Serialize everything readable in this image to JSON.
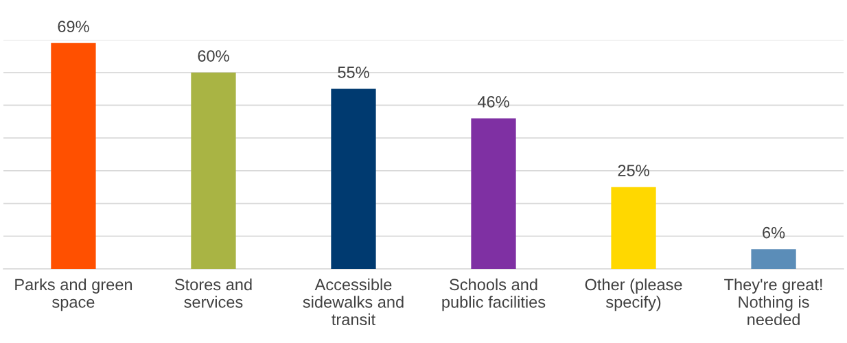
{
  "chart_data": {
    "type": "bar",
    "categories": [
      "Parks and green\nspace",
      "Stores and\nservices",
      "Accessible\nsidewalks and\ntransit",
      "Schools and\npublic facilities",
      "Other (please\nspecify)",
      "They're great!\nNothing is\nneeded"
    ],
    "values": [
      69,
      60,
      55,
      46,
      25,
      6
    ],
    "colors": [
      "#ff5000",
      "#a9b444",
      "#003a70",
      "#7f30a3",
      "#ffd800",
      "#5b8db8"
    ],
    "value_labels": [
      "69%",
      "60%",
      "55%",
      "46%",
      "25%",
      "6%"
    ],
    "ylim": [
      0,
      70
    ],
    "yticks": [
      {
        "value": 0,
        "label": null
      },
      {
        "value": 10,
        "label": null
      },
      {
        "value": 20,
        "label": null
      },
      {
        "value": 30,
        "label": null
      },
      {
        "value": 40,
        "label": null
      },
      {
        "value": 50,
        "label": null
      },
      {
        "value": 60,
        "label": null
      },
      {
        "value": 70,
        "label": null
      }
    ],
    "grid": "y",
    "tick_labels": "x"
  }
}
